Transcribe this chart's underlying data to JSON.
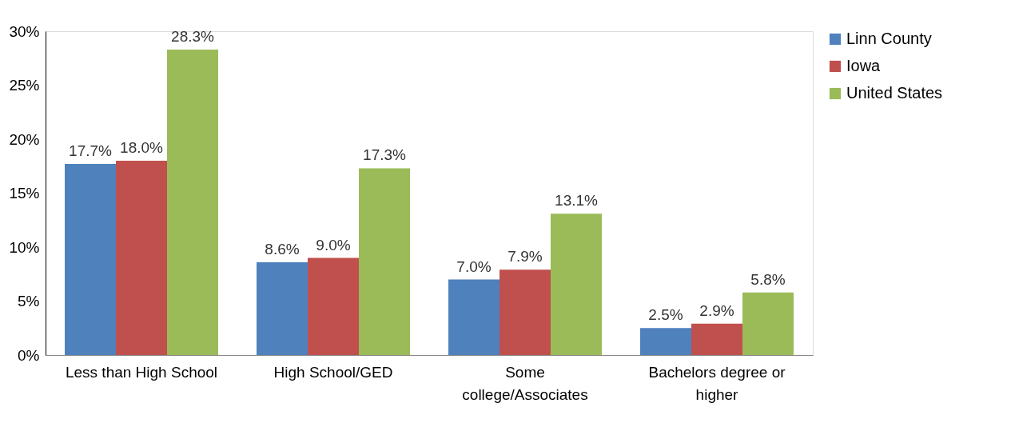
{
  "chart_data": {
    "type": "bar",
    "categories": [
      "Less than High School",
      "High School/GED",
      "Some\ncollege/Associates",
      "Bachelors degree or\nhigher"
    ],
    "series": [
      {
        "name": "Linn County",
        "color": "#4f81bd",
        "values": [
          17.7,
          8.6,
          7.0,
          2.5
        ],
        "value_labels": [
          "17.7%",
          "8.6%",
          "7.0%",
          "2.5%"
        ]
      },
      {
        "name": "Iowa",
        "color": "#c0504d",
        "values": [
          18.0,
          9.0,
          7.9,
          2.9
        ],
        "value_labels": [
          "18.0%",
          "9.0%",
          "7.9%",
          "2.9%"
        ]
      },
      {
        "name": "United States",
        "color": "#9bbb59",
        "values": [
          28.3,
          17.3,
          13.1,
          5.8
        ],
        "value_labels": [
          "28.3%",
          "17.3%",
          "13.1%",
          "5.8%"
        ]
      }
    ],
    "ylim": [
      0,
      30
    ],
    "yticks": [
      {
        "value": 0,
        "label": "0%"
      },
      {
        "value": 5,
        "label": "5%"
      },
      {
        "value": 10,
        "label": "10%"
      },
      {
        "value": 15,
        "label": "15%"
      },
      {
        "value": 20,
        "label": "20%"
      },
      {
        "value": 25,
        "label": "25%"
      },
      {
        "value": 30,
        "label": "30%"
      }
    ],
    "grid": false,
    "legend": "right"
  }
}
